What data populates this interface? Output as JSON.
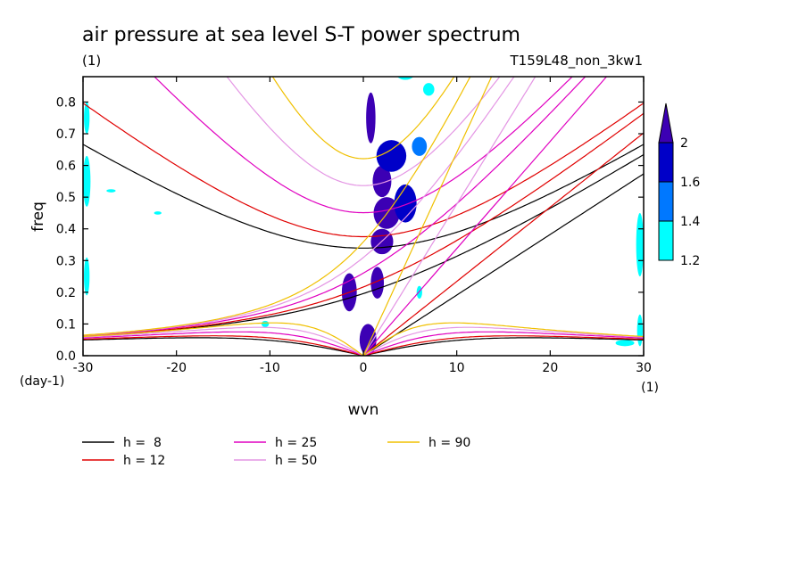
{
  "chart_data": {
    "type": "heatmap",
    "title": "air pressure at sea level S-T power spectrum",
    "subtitle_left": "(1)",
    "subtitle_right": "T159L48_non_3kw1",
    "xlabel": "wvn",
    "ylabel": "freq",
    "x_unit": "(1)",
    "y_unit": "(day-1)",
    "xlim": [
      -30,
      30
    ],
    "ylim": [
      0,
      0.88
    ],
    "xticks": [
      -30,
      -20,
      -10,
      0,
      10,
      20,
      30
    ],
    "xtick_labels": [
      "-30",
      "-20",
      "-10",
      "0",
      "10",
      "20",
      "30"
    ],
    "yticks": [
      0,
      0.1,
      0.2,
      0.3,
      0.4,
      0.5,
      0.6,
      0.7,
      0.8
    ],
    "ytick_labels": [
      "0.0",
      "0.1",
      "0.2",
      "0.3",
      "0.4",
      "0.5",
      "0.6",
      "0.7",
      "0.8"
    ],
    "colorbar": {
      "levels": [
        1.2,
        1.4,
        1.6,
        2
      ],
      "level_labels": [
        "1.2",
        "1.4",
        "1.6",
        "2"
      ],
      "colors": [
        "#00ffff",
        "#0078ff",
        "#0000c8",
        "#3c00b4"
      ]
    },
    "shaded_regions": [
      {
        "level": 2,
        "x": 0.8,
        "y": 0.75,
        "rx": 0.5,
        "ry": 0.08
      },
      {
        "level": 2,
        "x": 2.0,
        "y": 0.55,
        "rx": 1.0,
        "ry": 0.05
      },
      {
        "level": 2,
        "x": 2.5,
        "y": 0.45,
        "rx": 1.4,
        "ry": 0.05
      },
      {
        "level": 2,
        "x": 2.0,
        "y": 0.36,
        "rx": 1.2,
        "ry": 0.04
      },
      {
        "level": 2,
        "x": 1.5,
        "y": 0.23,
        "rx": 0.7,
        "ry": 0.05
      },
      {
        "level": 2,
        "x": -1.5,
        "y": 0.2,
        "rx": 0.8,
        "ry": 0.06
      },
      {
        "level": 2,
        "x": 0.5,
        "y": 0.05,
        "rx": 0.9,
        "ry": 0.05
      },
      {
        "level": 1.6,
        "x": 3.0,
        "y": 0.63,
        "rx": 1.6,
        "ry": 0.05
      },
      {
        "level": 1.6,
        "x": 4.5,
        "y": 0.48,
        "rx": 1.2,
        "ry": 0.06
      },
      {
        "level": 1.4,
        "x": 6.0,
        "y": 0.66,
        "rx": 0.8,
        "ry": 0.03
      },
      {
        "level": 1.2,
        "x": 4.5,
        "y": 0.9,
        "rx": 1.2,
        "ry": 0.03
      },
      {
        "level": 1.2,
        "x": 7.0,
        "y": 0.84,
        "rx": 0.6,
        "ry": 0.02
      },
      {
        "level": 1.2,
        "x": -29.6,
        "y": 0.55,
        "rx": 0.4,
        "ry": 0.08
      },
      {
        "level": 1.2,
        "x": -29.6,
        "y": 0.75,
        "rx": 0.3,
        "ry": 0.05
      },
      {
        "level": 1.2,
        "x": -29.6,
        "y": 0.25,
        "rx": 0.3,
        "ry": 0.06
      },
      {
        "level": 1.2,
        "x": 29.6,
        "y": 0.35,
        "rx": 0.4,
        "ry": 0.1
      },
      {
        "level": 1.2,
        "x": 29.6,
        "y": 0.08,
        "rx": 0.3,
        "ry": 0.05
      },
      {
        "level": 1.2,
        "x": 28.0,
        "y": 0.04,
        "rx": 1.0,
        "ry": 0.01
      },
      {
        "level": 1.2,
        "x": -27.0,
        "y": 0.52,
        "rx": 0.5,
        "ry": 0.005
      },
      {
        "level": 1.2,
        "x": -22.0,
        "y": 0.45,
        "rx": 0.4,
        "ry": 0.005
      },
      {
        "level": 1.2,
        "x": -10.5,
        "y": 0.1,
        "rx": 0.4,
        "ry": 0.01
      },
      {
        "level": 1.2,
        "x": 6.0,
        "y": 0.2,
        "rx": 0.3,
        "ry": 0.02
      }
    ],
    "series": [
      {
        "name": "h =  8",
        "h": 8,
        "color": "#000000"
      },
      {
        "name": "h = 12",
        "h": 12,
        "color": "#e00000"
      },
      {
        "name": "h = 25",
        "h": 25,
        "color": "#e000c0"
      },
      {
        "name": "h = 50",
        "h": 50,
        "color": "#e496e4"
      },
      {
        "name": "h = 90",
        "h": 90,
        "color": "#f0c000"
      }
    ],
    "legend_placement": "bottom",
    "grid": false
  }
}
